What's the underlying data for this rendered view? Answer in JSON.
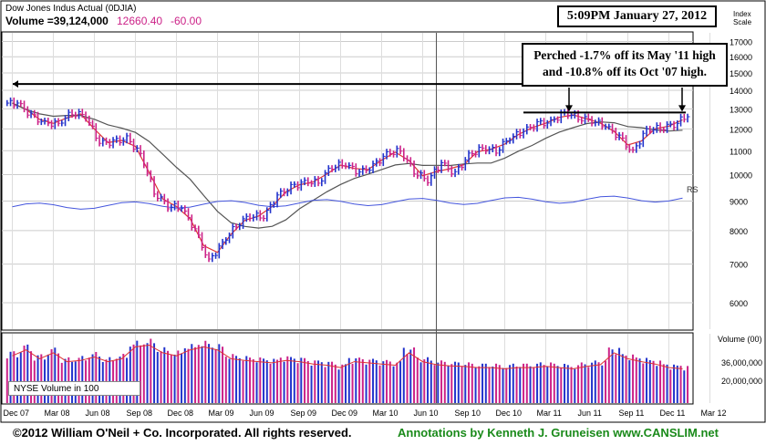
{
  "header": {
    "title": "Dow Jones Indus Actual  (0DJIA)",
    "volume_label": "Volume =39,124,000",
    "price": "12660.40",
    "change": "-60.00",
    "timestamp": "5:09PM January 27, 2012",
    "index_scale_label": "Index\nScale",
    "volume_scale_label": "Volume (00)"
  },
  "annotation": {
    "line1": "Perched -1.7% off its May '11 high",
    "line2": "and -10.8% off its Oct '07 high."
  },
  "footer": {
    "copyright": "©2012 William O'Neil + Co. Incorporated. All rights reserved.",
    "credit": "Annotations by Kenneth J. Gruneisen www.CANSLIM.net"
  },
  "nyse_label": "NYSE Volume in 100",
  "rs_label": "RS",
  "colors": {
    "up": "#2233cc",
    "down": "#cc2288",
    "ma_short": "#dd3333",
    "ma_long": "#555555",
    "rs": "#4455dd",
    "price_val": "#cc2288"
  },
  "chart_data": {
    "type": "bar",
    "title": "Dow Jones Indus Actual  (0DJIA)",
    "x_ticks": [
      "Dec 07",
      "Mar 08",
      "Jun 08",
      "Sep 08",
      "Dec 08",
      "Mar 09",
      "Jun 09",
      "Sep 09",
      "Dec 09",
      "Mar 10",
      "Jun 10",
      "Sep 10",
      "Dec 10",
      "Mar 11",
      "Jun 11",
      "Sep 11",
      "Dec 11",
      "Mar 12"
    ],
    "y_ticks": [
      6000,
      7000,
      8000,
      9000,
      10000,
      11000,
      12000,
      13000,
      14000,
      15000,
      16000,
      17000
    ],
    "ylim": [
      5400,
      17600
    ],
    "y_scale": "log",
    "volume_ticks": [
      "36,000,000",
      "20,000,000"
    ],
    "monthly_close": [
      [
        "Dec 07",
        13300
      ],
      [
        "Jan 08",
        12650
      ],
      [
        "Feb 08",
        12270
      ],
      [
        "Mar 08",
        12260
      ],
      [
        "Apr 08",
        12820
      ],
      [
        "May 08",
        12640
      ],
      [
        "Jun 08",
        11350
      ],
      [
        "Jul 08",
        11380
      ],
      [
        "Aug 08",
        11540
      ],
      [
        "Sep 08",
        10850
      ],
      [
        "Oct 08",
        9330
      ],
      [
        "Nov 08",
        8830
      ],
      [
        "Dec 08",
        8780
      ],
      [
        "Jan 09",
        8000
      ],
      [
        "Feb 09",
        7060
      ],
      [
        "Mar 09",
        7610
      ],
      [
        "Apr 09",
        8170
      ],
      [
        "May 09",
        8500
      ],
      [
        "Jun 09",
        8450
      ],
      [
        "Jul 09",
        9170
      ],
      [
        "Aug 09",
        9500
      ],
      [
        "Sep 09",
        9710
      ],
      [
        "Oct 09",
        9710
      ],
      [
        "Nov 09",
        10340
      ],
      [
        "Dec 09",
        10430
      ],
      [
        "Jan 10",
        10070
      ],
      [
        "Feb 10",
        10330
      ],
      [
        "Mar 10",
        10860
      ],
      [
        "Apr 10",
        11010
      ],
      [
        "May 10",
        10140
      ],
      [
        "Jun 10",
        9770
      ],
      [
        "Jul 10",
        10470
      ],
      [
        "Aug 10",
        10010
      ],
      [
        "Sep 10",
        10790
      ],
      [
        "Oct 10",
        11120
      ],
      [
        "Nov 10",
        11010
      ],
      [
        "Dec 10",
        11580
      ],
      [
        "Jan 11",
        11890
      ],
      [
        "Feb 11",
        12230
      ],
      [
        "Mar 11",
        12320
      ],
      [
        "Apr 11",
        12810
      ],
      [
        "May 11",
        12570
      ],
      [
        "Jun 11",
        12410
      ],
      [
        "Jul 11",
        12140
      ],
      [
        "Aug 11",
        11610
      ],
      [
        "Sep 11",
        10910
      ],
      [
        "Oct 11",
        11960
      ],
      [
        "Nov 11",
        12050
      ],
      [
        "Dec 11",
        12220
      ],
      [
        "Jan 12",
        12660
      ]
    ],
    "volume_relative": [
      0.8,
      0.9,
      0.75,
      0.85,
      0.7,
      0.72,
      0.78,
      0.7,
      0.75,
      0.95,
      0.98,
      0.85,
      0.8,
      0.9,
      0.95,
      0.9,
      0.75,
      0.72,
      0.7,
      0.68,
      0.72,
      0.7,
      0.66,
      0.64,
      0.6,
      0.7,
      0.68,
      0.66,
      0.64,
      0.85,
      0.7,
      0.65,
      0.63,
      0.62,
      0.6,
      0.6,
      0.58,
      0.6,
      0.6,
      0.62,
      0.6,
      0.58,
      0.62,
      0.65,
      0.85,
      0.75,
      0.7,
      0.66,
      0.6,
      0.58
    ],
    "resistance_level": 12810,
    "oct07_high": 14198,
    "series": [
      {
        "values_ref": "monthly_close"
      },
      {
        "name": "RS",
        "values": []
      }
    ],
    "annotations": [
      "Perched -1.7% off its May '11 high",
      "and -10.8% off its Oct '07 high."
    ]
  }
}
